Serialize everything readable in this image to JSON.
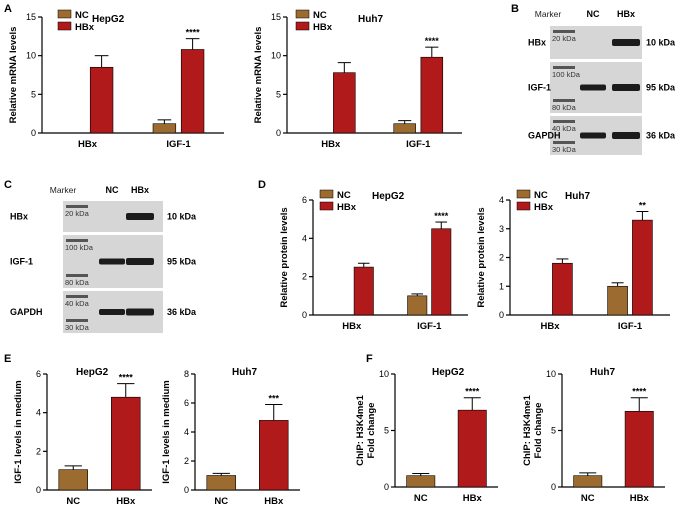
{
  "colors": {
    "nc": "#9c6b2f",
    "hbx": "#b01a1a",
    "axis": "#000000",
    "blot_bg": "#d6d6d6",
    "band": "#1c1c1c"
  },
  "panel_labels": {
    "A": "A",
    "B": "B",
    "C": "C",
    "D": "D",
    "E": "E",
    "F": "F"
  },
  "chart_data": [
    {
      "id": "A-HepG2",
      "type": "bar",
      "title": "HepG2",
      "ylabel": "Relative mRNA levels",
      "ylim": [
        0,
        15
      ],
      "yticks": [
        0,
        5,
        10,
        15
      ],
      "categories": [
        "HBx",
        "IGF-1"
      ],
      "legend": [
        "NC",
        "HBx"
      ],
      "series": [
        {
          "name": "NC",
          "values": [
            0,
            1.2
          ],
          "errors": [
            0,
            0.5
          ]
        },
        {
          "name": "HBx",
          "values": [
            8.5,
            10.8
          ],
          "errors": [
            1.5,
            1.4
          ]
        }
      ],
      "annotations": [
        {
          "category": "IGF-1",
          "text": "****"
        }
      ]
    },
    {
      "id": "A-Huh7",
      "type": "bar",
      "title": "Huh7",
      "ylabel": "Relative mRNA levels",
      "ylim": [
        0,
        15
      ],
      "yticks": [
        0,
        5,
        10,
        15
      ],
      "categories": [
        "HBx",
        "IGF-1"
      ],
      "legend": [
        "NC",
        "HBx"
      ],
      "series": [
        {
          "name": "NC",
          "values": [
            0,
            1.2
          ],
          "errors": [
            0,
            0.4
          ]
        },
        {
          "name": "HBx",
          "values": [
            7.8,
            9.8
          ],
          "errors": [
            1.3,
            1.3
          ]
        }
      ],
      "annotations": [
        {
          "category": "IGF-1",
          "text": "****"
        }
      ]
    },
    {
      "id": "D-HepG2",
      "type": "bar",
      "title": "HepG2",
      "ylabel": "Relative protein levels",
      "ylim": [
        0,
        6
      ],
      "yticks": [
        0,
        2,
        4,
        6
      ],
      "categories": [
        "HBx",
        "IGF-1"
      ],
      "legend": [
        "NC",
        "HBx"
      ],
      "series": [
        {
          "name": "NC",
          "values": [
            0,
            1.0
          ],
          "errors": [
            0,
            0.1
          ]
        },
        {
          "name": "HBx",
          "values": [
            2.5,
            4.5
          ],
          "errors": [
            0.2,
            0.35
          ]
        }
      ],
      "annotations": [
        {
          "category": "IGF-1",
          "text": "****"
        }
      ]
    },
    {
      "id": "D-Huh7",
      "type": "bar",
      "title": "Huh7",
      "ylabel": "Relative protein levels",
      "ylim": [
        0,
        4
      ],
      "yticks": [
        0,
        1,
        2,
        3,
        4
      ],
      "categories": [
        "HBx",
        "IGF-1"
      ],
      "legend": [
        "NC",
        "HBx"
      ],
      "series": [
        {
          "name": "NC",
          "values": [
            0,
            1.0
          ],
          "errors": [
            0,
            0.12
          ]
        },
        {
          "name": "HBx",
          "values": [
            1.8,
            3.3
          ],
          "errors": [
            0.15,
            0.3
          ]
        }
      ],
      "annotations": [
        {
          "category": "IGF-1",
          "text": "**"
        }
      ]
    },
    {
      "id": "E-HepG2",
      "type": "bar",
      "title": "HepG2",
      "ylabel": "IGF-1 levels in medium",
      "ylim": [
        0,
        6
      ],
      "yticks": [
        0,
        2,
        4,
        6
      ],
      "categories": [
        "NC",
        "HBx"
      ],
      "series": [
        {
          "name": "value",
          "values": [
            1.05,
            4.8
          ],
          "errors": [
            0.2,
            0.7
          ],
          "colors": [
            "nc",
            "hbx"
          ]
        }
      ],
      "annotations": [
        {
          "category": "HBx",
          "text": "****"
        }
      ]
    },
    {
      "id": "E-Huh7",
      "type": "bar",
      "title": "Huh7",
      "ylabel": "IGF-1 levels in medium",
      "ylim": [
        0,
        8
      ],
      "yticks": [
        0,
        2,
        4,
        6,
        8
      ],
      "categories": [
        "NC",
        "HBx"
      ],
      "series": [
        {
          "name": "value",
          "values": [
            1.0,
            4.8
          ],
          "errors": [
            0.15,
            1.1
          ],
          "colors": [
            "nc",
            "hbx"
          ]
        }
      ],
      "annotations": [
        {
          "category": "HBx",
          "text": "***"
        }
      ]
    },
    {
      "id": "F-HepG2",
      "type": "bar",
      "title": "HepG2",
      "ylabel": "ChIP: H3K4me1",
      "ylabel2": "Fold change",
      "ylim": [
        0,
        10
      ],
      "yticks": [
        0,
        5,
        10
      ],
      "categories": [
        "NC",
        "HBx"
      ],
      "series": [
        {
          "name": "value",
          "values": [
            1.0,
            6.8
          ],
          "errors": [
            0.2,
            1.1
          ],
          "colors": [
            "nc",
            "hbx"
          ]
        }
      ],
      "annotations": [
        {
          "category": "HBx",
          "text": "****"
        }
      ]
    },
    {
      "id": "F-Huh7",
      "type": "bar",
      "title": "Huh7",
      "ylabel": "ChIP: H3K4me1",
      "ylabel2": "Fold change",
      "ylim": [
        0,
        10
      ],
      "yticks": [
        0,
        5,
        10
      ],
      "categories": [
        "NC",
        "HBx"
      ],
      "series": [
        {
          "name": "value",
          "values": [
            1.0,
            6.7
          ],
          "errors": [
            0.25,
            1.2
          ],
          "colors": [
            "nc",
            "hbx"
          ]
        }
      ],
      "annotations": [
        {
          "category": "HBx",
          "text": "****"
        }
      ]
    }
  ],
  "blots": [
    {
      "id": "B",
      "header": [
        "Marker",
        "NC",
        "HBx"
      ],
      "rows": [
        {
          "protein": "HBx",
          "marker_labels": [
            "20 kDa"
          ],
          "size": "10 kDa",
          "nc_band": false,
          "hbx_band": true
        },
        {
          "protein": "IGF-1",
          "marker_labels": [
            "100 kDa",
            "80 kDa"
          ],
          "size": "95 kDa",
          "nc_band": true,
          "hbx_band": true
        },
        {
          "protein": "GAPDH",
          "marker_labels": [
            "40 kDa",
            "30 kDa"
          ],
          "size": "36 kDa",
          "nc_band": true,
          "hbx_band": true
        }
      ]
    },
    {
      "id": "C",
      "header": [
        "Marker",
        "NC",
        "HBx"
      ],
      "rows": [
        {
          "protein": "HBx",
          "marker_labels": [
            "20 kDa"
          ],
          "size": "10 kDa",
          "nc_band": false,
          "hbx_band": true
        },
        {
          "protein": "IGF-1",
          "marker_labels": [
            "100 kDa",
            "80 kDa"
          ],
          "size": "95 kDa",
          "nc_band": true,
          "hbx_band": true
        },
        {
          "protein": "GAPDH",
          "marker_labels": [
            "40 kDa",
            "30 kDa"
          ],
          "size": "36 kDa",
          "nc_band": true,
          "hbx_band": true
        }
      ]
    }
  ]
}
